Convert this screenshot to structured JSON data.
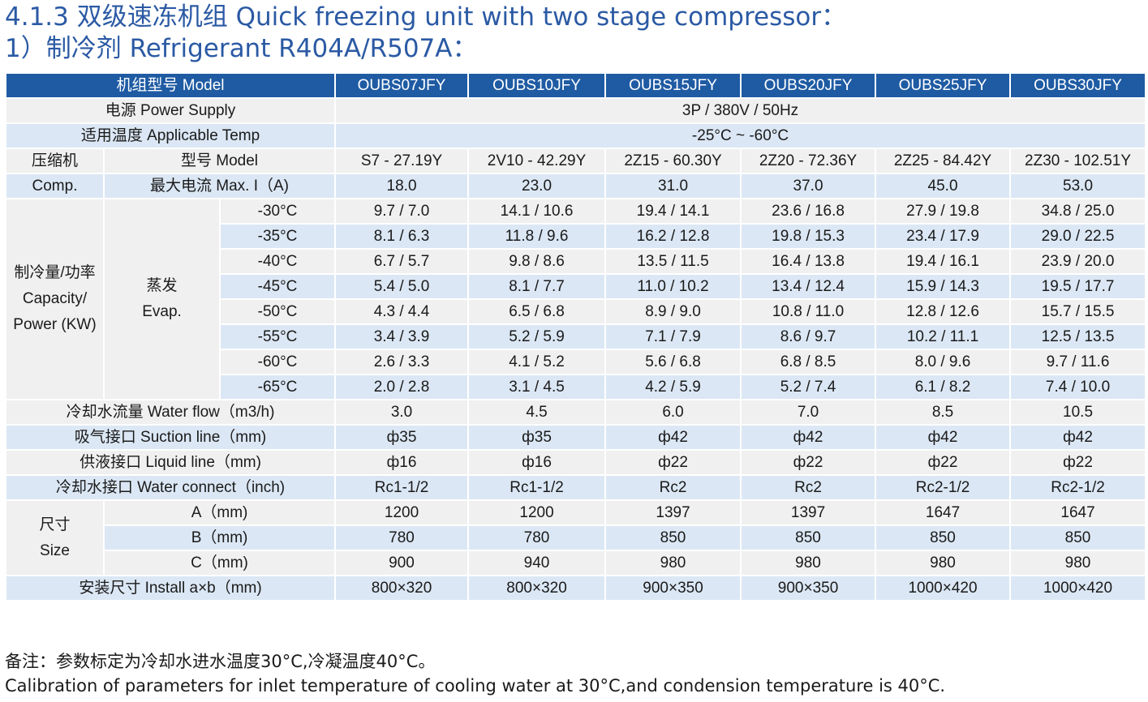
{
  "title": {
    "line1": "4.1.3 双级速冻机组 Quick freezing unit with two stage compressor：",
    "line2": "1）制冷剂 Refrigerant R404A/R507A："
  },
  "table": {
    "header": {
      "label": "机组型号 Model",
      "models": [
        "OUBS07JFY",
        "OUBS10JFY",
        "OUBS15JFY",
        "OUBS20JFY",
        "OUBS25JFY",
        "OUBS30JFY"
      ]
    },
    "power_supply": {
      "label": "电源 Power Supply",
      "value": "3P / 380V / 50Hz"
    },
    "applicable_temp": {
      "label": "适用温度 Applicable Temp",
      "value": "-25°C ~ -60°C"
    },
    "compressor": {
      "group_label_cn": "压缩机",
      "group_label_en": "Comp.",
      "model_label": "型号 Model",
      "models": [
        "S7 - 27.19Y",
        "2V10 - 42.29Y",
        "2Z15 - 60.30Y",
        "2Z20 - 72.36Y",
        "2Z25 - 84.42Y",
        "2Z30 - 102.51Y"
      ],
      "current_label": "最大电流 Max. I（A)",
      "currents": [
        "18.0",
        "23.0",
        "31.0",
        "37.0",
        "45.0",
        "53.0"
      ]
    },
    "capacity": {
      "label_lines": [
        "制冷量/功率",
        "Capacity/",
        "Power (KW)"
      ],
      "evap_lines": [
        "蒸发",
        "Evap."
      ],
      "rows": [
        {
          "temp": "-30°C",
          "values": [
            "9.7 / 7.0",
            "14.1 / 10.6",
            "19.4 / 14.1",
            "23.6 / 16.8",
            "27.9 / 19.8",
            "34.8 / 25.0"
          ]
        },
        {
          "temp": "-35°C",
          "values": [
            "8.1 / 6.3",
            "11.8 / 9.6",
            "16.2 / 12.8",
            "19.8 / 15.3",
            "23.4 / 17.9",
            "29.0 / 22.5"
          ]
        },
        {
          "temp": "-40°C",
          "values": [
            "6.7 / 5.7",
            "9.8 / 8.6",
            "13.5 / 11.5",
            "16.4 / 13.8",
            "19.4 / 16.1",
            "23.9 / 20.0"
          ]
        },
        {
          "temp": "-45°C",
          "values": [
            "5.4 / 5.0",
            "8.1 / 7.7",
            "11.0 / 10.2",
            "13.4 / 12.4",
            "15.9 / 14.3",
            "19.5 / 17.7"
          ]
        },
        {
          "temp": "-50°C",
          "values": [
            "4.3 / 4.4",
            "6.5 / 6.8",
            "8.9 / 9.0",
            "10.8 / 11.0",
            "12.8 / 12.6",
            "15.7 / 15.5"
          ]
        },
        {
          "temp": "-55°C",
          "values": [
            "3.4 / 3.9",
            "5.2 / 5.9",
            "7.1 / 7.9",
            "8.6 / 9.7",
            "10.2 / 11.1",
            "12.5 / 13.5"
          ]
        },
        {
          "temp": "-60°C",
          "values": [
            "2.6 / 3.3",
            "4.1 / 5.2",
            "5.6 / 6.8",
            "6.8 / 8.5",
            "8.0 / 9.6",
            "9.7 / 11.6"
          ]
        },
        {
          "temp": "-65°C",
          "values": [
            "2.0 / 2.8",
            "3.1 / 4.5",
            "4.2 / 5.9",
            "5.2 / 7.4",
            "6.1 / 8.2",
            "7.4 / 10.0"
          ]
        }
      ]
    },
    "water_flow": {
      "label": "冷却水流量 Water flow（m3/h)",
      "values": [
        "3.0",
        "4.5",
        "6.0",
        "7.0",
        "8.5",
        "10.5"
      ]
    },
    "suction_line": {
      "label": "吸气接口 Suction line（mm)",
      "values": [
        "ф35",
        "ф35",
        "ф42",
        "ф42",
        "ф42",
        "ф42"
      ]
    },
    "liquid_line": {
      "label": "供液接口 Liquid line（mm)",
      "values": [
        "ф16",
        "ф16",
        "ф22",
        "ф22",
        "ф22",
        "ф22"
      ]
    },
    "water_connect": {
      "label": "冷却水接口 Water connect（inch)",
      "values": [
        "Rc1-1/2",
        "Rc1-1/2",
        "Rc2",
        "Rc2",
        "Rc2-1/2",
        "Rc2-1/2"
      ]
    },
    "size": {
      "label_lines": [
        "尺寸",
        "Size"
      ],
      "rows": [
        {
          "label": "A（mm)",
          "values": [
            "1200",
            "1200",
            "1397",
            "1397",
            "1647",
            "1647"
          ]
        },
        {
          "label": "B（mm)",
          "values": [
            "780",
            "780",
            "850",
            "850",
            "850",
            "850"
          ]
        },
        {
          "label": "C（mm)",
          "values": [
            "900",
            "940",
            "980",
            "980",
            "980",
            "980"
          ]
        }
      ]
    },
    "install": {
      "label": "安装尺寸  Install  a×b（mm)",
      "values": [
        "800×320",
        "800×320",
        "900×350",
        "900×350",
        "1000×420",
        "1000×420"
      ]
    }
  },
  "notes": {
    "cn": "备注：参数标定为冷却水进水温度30°C,冷凝温度40°C。",
    "en": "Calibration of parameters for inlet temperature of cooling water at 30°C,and condension temperature is 40°C."
  },
  "colors": {
    "title": "#2b5aa4",
    "header_bg": "#1f5ba3",
    "row_light": "#f0f0f0",
    "row_blue": "#dbe7f4"
  }
}
